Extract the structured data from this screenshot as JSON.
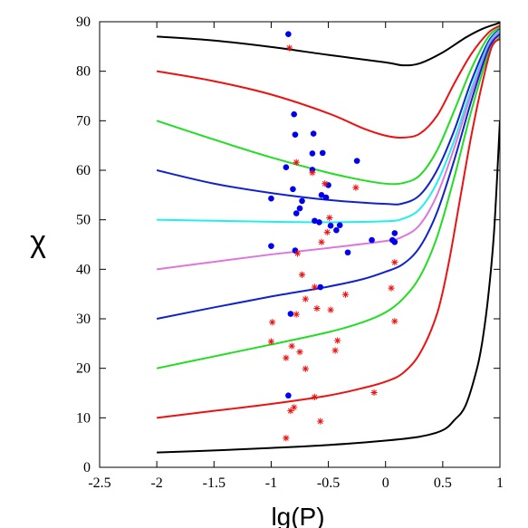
{
  "chart_data": {
    "type": "scatter",
    "xlabel": "lg(P)",
    "ylabel": "χ",
    "xlim": [
      -2.5,
      1
    ],
    "ylim": [
      0,
      90
    ],
    "x_ticks": [
      "-2.5",
      "-2",
      "-1.5",
      "-1",
      "-0.5",
      "0",
      "0.5",
      "1"
    ],
    "y_ticks": [
      "0",
      "10",
      "20",
      "30",
      "40",
      "50",
      "60",
      "70",
      "80",
      "90"
    ],
    "grid": false,
    "legend": "none",
    "curves": [
      {
        "color": "#000000",
        "points": [
          [
            -2,
            87
          ],
          [
            -1.5,
            86.2
          ],
          [
            -1,
            84.9
          ],
          [
            -0.5,
            83.3
          ],
          [
            0,
            81.8
          ],
          [
            0.15,
            81.2
          ],
          [
            0.3,
            81.6
          ],
          [
            0.5,
            83.8
          ],
          [
            0.7,
            86.8
          ],
          [
            0.85,
            88.6
          ],
          [
            1,
            89.8
          ]
        ]
      },
      {
        "color": "#ee1111",
        "points": [
          [
            -2,
            80
          ],
          [
            -1.5,
            78
          ],
          [
            -1,
            75.3
          ],
          [
            -0.5,
            71.5
          ],
          [
            -0.2,
            68.5
          ],
          [
            0,
            67
          ],
          [
            0.15,
            66.6
          ],
          [
            0.3,
            67.4
          ],
          [
            0.45,
            71
          ],
          [
            0.6,
            77.5
          ],
          [
            0.75,
            83.5
          ],
          [
            0.9,
            87.8
          ],
          [
            1,
            89.2
          ]
        ]
      },
      {
        "color": "#22dd22",
        "points": [
          [
            -2,
            70
          ],
          [
            -1.5,
            66.2
          ],
          [
            -1,
            62.6
          ],
          [
            -0.5,
            59.5
          ],
          [
            -0.2,
            58
          ],
          [
            0,
            57.3
          ],
          [
            0.15,
            57.4
          ],
          [
            0.3,
            59
          ],
          [
            0.45,
            64
          ],
          [
            0.6,
            72
          ],
          [
            0.75,
            80.5
          ],
          [
            0.9,
            87
          ],
          [
            1,
            88.8
          ]
        ]
      },
      {
        "color": "#1122cc",
        "points": [
          [
            -2,
            60
          ],
          [
            -1.5,
            57.3
          ],
          [
            -1,
            55.4
          ],
          [
            -0.5,
            54
          ],
          [
            0,
            53.2
          ],
          [
            0.15,
            53.3
          ],
          [
            0.3,
            55
          ],
          [
            0.45,
            60
          ],
          [
            0.6,
            68
          ],
          [
            0.75,
            78
          ],
          [
            0.9,
            86
          ],
          [
            1,
            88.5
          ]
        ]
      },
      {
        "color": "#22eeee",
        "points": [
          [
            -2,
            50
          ],
          [
            -1.5,
            49.8
          ],
          [
            -1,
            49.6
          ],
          [
            -0.5,
            49.5
          ],
          [
            0,
            49.7
          ],
          [
            0.15,
            50.2
          ],
          [
            0.3,
            52.2
          ],
          [
            0.45,
            57.5
          ],
          [
            0.6,
            66
          ],
          [
            0.75,
            76.5
          ],
          [
            0.9,
            85.5
          ],
          [
            1,
            88.3
          ]
        ]
      },
      {
        "color": "#dd77dd",
        "points": [
          [
            -2,
            40
          ],
          [
            -1.5,
            41.5
          ],
          [
            -1,
            43
          ],
          [
            -0.5,
            44.3
          ],
          [
            0,
            45.7
          ],
          [
            0.15,
            46.6
          ],
          [
            0.3,
            49
          ],
          [
            0.45,
            55
          ],
          [
            0.6,
            64.5
          ],
          [
            0.75,
            75.5
          ],
          [
            0.9,
            85
          ],
          [
            1,
            88
          ]
        ]
      },
      {
        "color": "#1122cc",
        "points": [
          [
            -2,
            30
          ],
          [
            -1.5,
            32.3
          ],
          [
            -1,
            34.5
          ],
          [
            -0.5,
            36.5
          ],
          [
            -0.2,
            38
          ],
          [
            0,
            39.5
          ],
          [
            0.15,
            41
          ],
          [
            0.3,
            44.5
          ],
          [
            0.45,
            51.5
          ],
          [
            0.6,
            62
          ],
          [
            0.75,
            74
          ],
          [
            0.9,
            84.5
          ],
          [
            1,
            87.5
          ]
        ]
      },
      {
        "color": "#22dd22",
        "points": [
          [
            -2,
            20
          ],
          [
            -1.5,
            22.4
          ],
          [
            -1,
            24.8
          ],
          [
            -0.5,
            27.3
          ],
          [
            -0.2,
            29.3
          ],
          [
            0,
            31.3
          ],
          [
            0.15,
            34
          ],
          [
            0.3,
            38.5
          ],
          [
            0.45,
            46.5
          ],
          [
            0.6,
            58.5
          ],
          [
            0.75,
            72
          ],
          [
            0.9,
            83.5
          ],
          [
            1,
            87
          ]
        ]
      },
      {
        "color": "#ee1111",
        "points": [
          [
            -2,
            10
          ],
          [
            -1.5,
            11.4
          ],
          [
            -1,
            12.8
          ],
          [
            -0.5,
            14.5
          ],
          [
            -0.2,
            16
          ],
          [
            0,
            17.3
          ],
          [
            0.15,
            19
          ],
          [
            0.3,
            23
          ],
          [
            0.45,
            31
          ],
          [
            0.55,
            41
          ],
          [
            0.65,
            54
          ],
          [
            0.75,
            67
          ],
          [
            0.85,
            78
          ],
          [
            0.93,
            85
          ],
          [
            1,
            86.5
          ]
        ]
      },
      {
        "color": "#000000",
        "points": [
          [
            -2,
            3
          ],
          [
            -1.5,
            3.4
          ],
          [
            -1,
            3.9
          ],
          [
            -0.5,
            4.5
          ],
          [
            0,
            5.4
          ],
          [
            0.3,
            6.2
          ],
          [
            0.5,
            7.5
          ],
          [
            0.6,
            9.5
          ],
          [
            0.7,
            12.5
          ],
          [
            0.8,
            20
          ],
          [
            0.85,
            26
          ],
          [
            0.9,
            35
          ],
          [
            0.95,
            48
          ],
          [
            1,
            70
          ]
        ]
      }
    ],
    "dot_series": {
      "color": "#0000ee",
      "points": [
        [
          -0.85,
          87.5
        ],
        [
          -0.8,
          71.3
        ],
        [
          -0.79,
          67.2
        ],
        [
          -0.63,
          67.4
        ],
        [
          -0.55,
          63.5
        ],
        [
          -0.64,
          63.4
        ],
        [
          -0.25,
          61.9
        ],
        [
          -0.87,
          60.6
        ],
        [
          -0.64,
          60.1
        ],
        [
          -0.81,
          56.2
        ],
        [
          -0.5,
          57.0
        ],
        [
          -0.56,
          55.0
        ],
        [
          -0.52,
          54.5
        ],
        [
          -1.0,
          54.3
        ],
        [
          -0.73,
          53.8
        ],
        [
          -0.75,
          52.3
        ],
        [
          -0.78,
          51.3
        ],
        [
          -0.62,
          49.8
        ],
        [
          -0.58,
          49.5
        ],
        [
          -0.48,
          48.8
        ],
        [
          -0.4,
          48.9
        ],
        [
          -0.43,
          47.9
        ],
        [
          0.08,
          47.3
        ],
        [
          -0.12,
          45.9
        ],
        [
          0.06,
          45.9
        ],
        [
          0.08,
          45.5
        ],
        [
          -1.0,
          44.7
        ],
        [
          -0.79,
          43.8
        ],
        [
          -0.33,
          43.4
        ],
        [
          -0.57,
          36.4
        ],
        [
          -0.83,
          31.0
        ],
        [
          -0.85,
          14.5
        ]
      ]
    },
    "star_series": {
      "color": "#ee1111",
      "points": [
        [
          -0.84,
          84.7
        ],
        [
          -0.78,
          61.6
        ],
        [
          -0.64,
          59.5
        ],
        [
          -0.53,
          57.3
        ],
        [
          -0.26,
          56.5
        ],
        [
          -0.49,
          50.4
        ],
        [
          -0.51,
          47.5
        ],
        [
          -0.56,
          45.5
        ],
        [
          0.08,
          41.4
        ],
        [
          -0.77,
          43.2
        ],
        [
          -0.73,
          38.9
        ],
        [
          -0.62,
          36.4
        ],
        [
          -0.35,
          34.9
        ],
        [
          0.05,
          36.2
        ],
        [
          -0.7,
          34.0
        ],
        [
          -0.6,
          32.1
        ],
        [
          -0.48,
          31.8
        ],
        [
          -0.78,
          30.9
        ],
        [
          -0.99,
          29.3
        ],
        [
          0.08,
          29.5
        ],
        [
          -1.0,
          25.4
        ],
        [
          -0.82,
          24.5
        ],
        [
          -0.42,
          25.6
        ],
        [
          -0.75,
          23.3
        ],
        [
          -0.44,
          23.6
        ],
        [
          -0.87,
          22.1
        ],
        [
          -0.7,
          19.9
        ],
        [
          -0.1,
          15.1
        ],
        [
          -0.62,
          14.2
        ],
        [
          -0.8,
          12.1
        ],
        [
          -0.83,
          11.4
        ],
        [
          -0.57,
          9.3
        ],
        [
          -0.87,
          5.9
        ]
      ]
    }
  }
}
